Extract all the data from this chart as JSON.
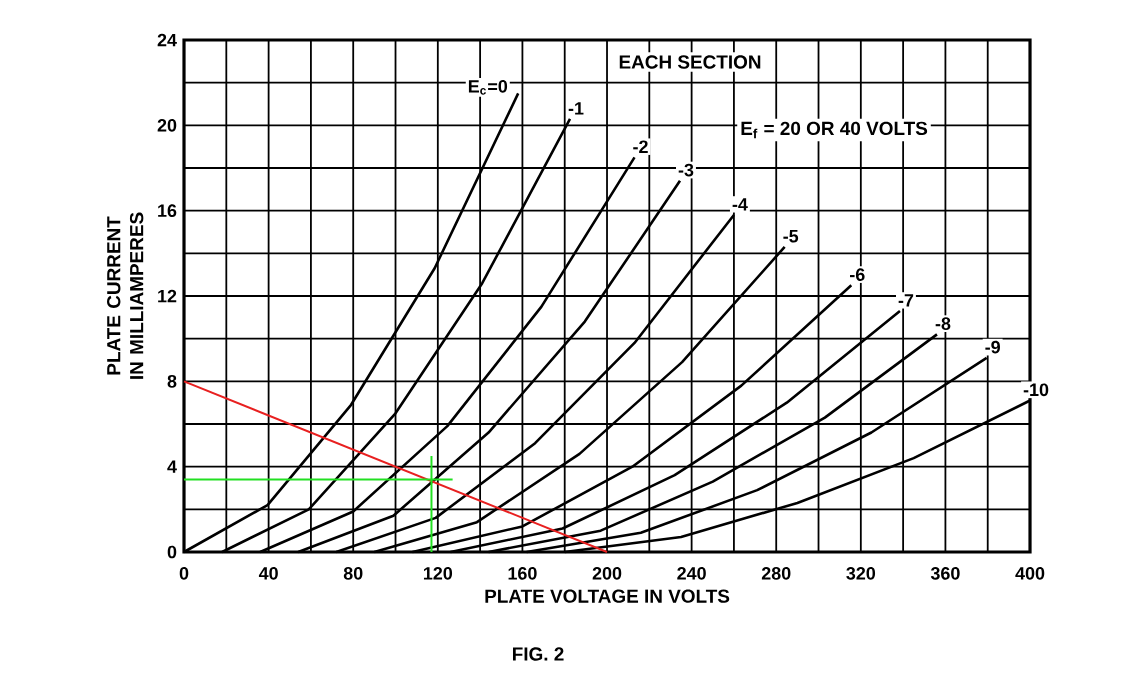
{
  "chart_data": {
    "type": "line",
    "xlabel": "PLATE VOLTAGE IN VOLTS",
    "ylabel": "PLATE CURRENT IN MILLIAMPERES",
    "annotations": [
      "EACH SECTION",
      "E$_{f}$ = 20 OR 40 VOLTS",
      "FIG. 2"
    ],
    "xlim": [
      0,
      400
    ],
    "ylim": [
      0,
      24
    ],
    "xticks": [
      0,
      {
        "value": 20,
        "label": null
      },
      40,
      {
        "value": 60,
        "label": null
      },
      80,
      {
        "value": 100,
        "label": null
      },
      120,
      {
        "value": 140,
        "label": null
      },
      160,
      {
        "value": 180,
        "label": null
      },
      200,
      {
        "value": 220,
        "label": null
      },
      240,
      {
        "value": 260,
        "label": null
      },
      280,
      {
        "value": 300,
        "label": null
      },
      320,
      {
        "value": 340,
        "label": null
      },
      360,
      {
        "value": 380,
        "label": null
      },
      400
    ],
    "yticks": [
      0,
      {
        "value": 2,
        "label": null
      },
      4,
      {
        "value": 6,
        "label": null
      },
      8,
      {
        "value": 10,
        "label": null
      },
      12,
      {
        "value": 14,
        "label": null
      },
      16,
      {
        "value": 18,
        "label": null
      },
      20,
      {
        "value": 22,
        "label": null
      },
      24
    ],
    "grid": true,
    "marker": "none",
    "line_style": "solid",
    "series": [
      {
        "name": "E$_{c}$=0",
        "color": "#000000",
        "x": [
          0,
          39.5,
          79,
          118.5,
          158
        ],
        "values": [
          0,
          2.2,
          6.9,
          13.3,
          21.5
        ]
      },
      {
        "name": "-1",
        "color": "#000000",
        "x": [
          18,
          59,
          100,
          141,
          182.5
        ],
        "values": [
          0,
          2.0,
          6.5,
          12.6,
          20.3
        ]
      },
      {
        "name": "-2",
        "color": "#000000",
        "x": [
          36,
          80,
          124.5,
          169,
          213
        ],
        "values": [
          0,
          1.9,
          5.9,
          11.5,
          18.5
        ]
      },
      {
        "name": "-3",
        "color": "#000000",
        "x": [
          54,
          99,
          144,
          189.5,
          234.5
        ],
        "values": [
          0,
          1.7,
          5.6,
          10.8,
          17.4
        ]
      },
      {
        "name": "-4",
        "color": "#000000",
        "x": [
          72,
          119,
          166,
          213,
          260
        ],
        "values": [
          0,
          1.6,
          5.1,
          9.8,
          15.8
        ]
      },
      {
        "name": "-5",
        "color": "#000000",
        "x": [
          90,
          138.5,
          187,
          235.5,
          284
        ],
        "values": [
          0,
          1.4,
          4.6,
          8.9,
          14.3
        ]
      },
      {
        "name": "-6",
        "color": "#000000",
        "x": [
          108,
          160,
          212,
          263.5,
          315.5
        ],
        "values": [
          0,
          1.2,
          4.0,
          7.8,
          12.5
        ]
      },
      {
        "name": "-7",
        "color": "#000000",
        "x": [
          126,
          179,
          232,
          285,
          338.5
        ],
        "values": [
          0,
          1.1,
          3.6,
          7.0,
          11.3
        ]
      },
      {
        "name": "-8",
        "color": "#000000",
        "x": [
          144,
          197,
          250,
          303,
          356
        ],
        "values": [
          0,
          1.0,
          3.3,
          6.3,
          10.2
        ]
      },
      {
        "name": "-9",
        "color": "#000000",
        "x": [
          162,
          216,
          271,
          325,
          379.5
        ],
        "values": [
          0,
          0.9,
          2.9,
          5.6,
          9.1
        ]
      },
      {
        "name": "-10",
        "color": "#000000",
        "x": [
          180,
          235,
          290,
          345,
          400
        ],
        "values": [
          0,
          0.7,
          2.3,
          4.4,
          7.1
        ]
      },
      {
        "color": "#e82020",
        "x": [
          0,
          200
        ],
        "values": [
          8,
          0
        ]
      },
      {
        "color": "#22e022",
        "x": [
          0,
          127
        ],
        "values": [
          3.4,
          3.4
        ]
      },
      {
        "color": "#22e022",
        "x": [
          117,
          117
        ],
        "values": [
          0,
          4.5
        ]
      }
    ]
  }
}
